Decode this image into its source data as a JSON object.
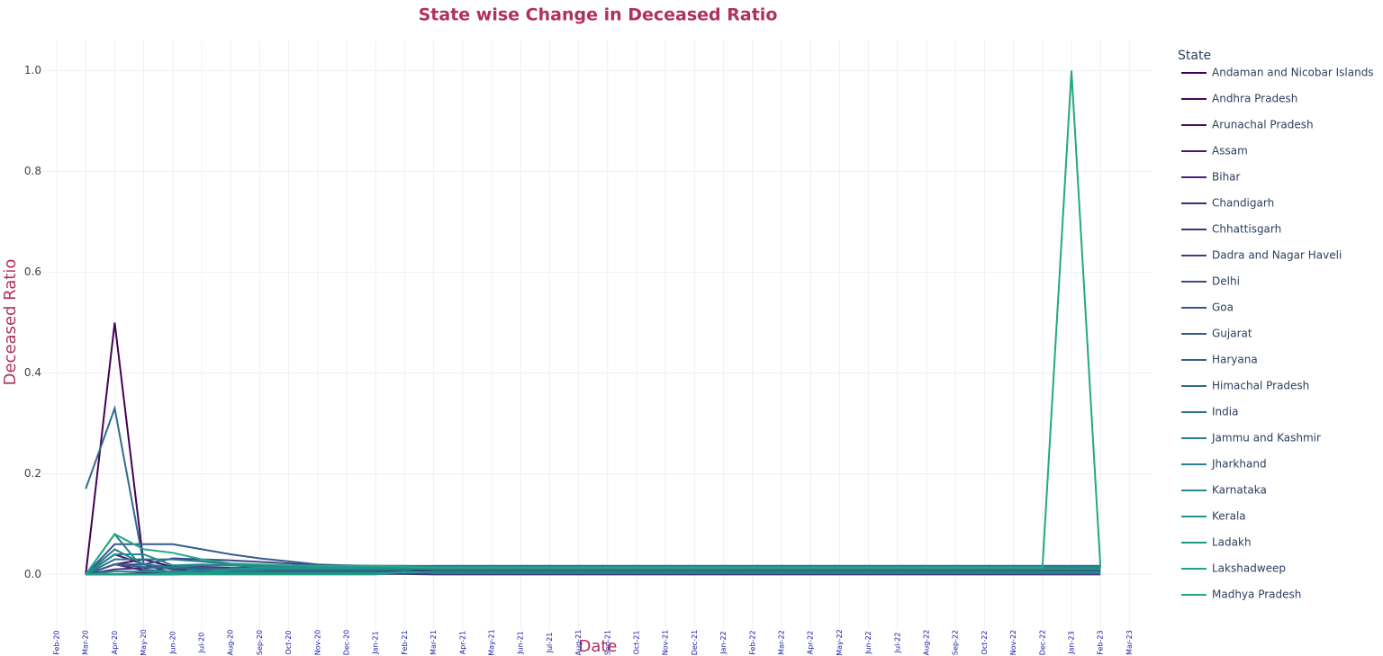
{
  "chart_data": {
    "type": "line",
    "title": "State wise Change in Deceased Ratio",
    "x_label": "Date",
    "y_label": "Deceased Ratio",
    "legend_title": "State",
    "x": [
      "Mar-20",
      "Apr-20",
      "May-20",
      "Jun-20",
      "Jul-20",
      "Aug-20",
      "Sep-20",
      "Oct-20",
      "Nov-20",
      "Dec-20",
      "Jan-21",
      "Feb-21",
      "Mar-21",
      "Apr-21",
      "May-21",
      "Jun-21",
      "Jul-21",
      "Aug-21",
      "Sep-21",
      "Oct-21",
      "Nov-21",
      "Dec-21",
      "Jan-22",
      "Feb-22",
      "Mar-22",
      "Apr-22",
      "May-22",
      "Jun-22",
      "Jul-22",
      "Aug-22",
      "Sep-22",
      "Oct-22",
      "Nov-22",
      "Dec-22",
      "Jan-23",
      "Feb-23"
    ],
    "xticks": [
      "Feb-20",
      "Mar-20",
      "Apr-20",
      "May-20",
      "Jun-20",
      "Jul-20",
      "Aug-20",
      "Sep-20",
      "Oct-20",
      "Nov-20",
      "Dec-20",
      "Jan-21",
      "Feb-21",
      "Mar-21",
      "Apr-21",
      "May-21",
      "Jun-21",
      "Jul-21",
      "Aug-21",
      "Sep-21",
      "Oct-21",
      "Nov-21",
      "Dec-21",
      "Jan-22",
      "Feb-22",
      "Mar-22",
      "Apr-22",
      "May-22",
      "Jun-22",
      "Jul-22",
      "Aug-22",
      "Sep-22",
      "Oct-22",
      "Nov-22",
      "Dec-22",
      "Jan-23",
      "Feb-23",
      "Mar-23"
    ],
    "ylim": [
      -0.11,
      1.06
    ],
    "yticks": [
      {
        "value": 0,
        "label": "0.0"
      },
      0.2,
      0.4,
      0.6,
      0.8,
      {
        "value": 1,
        "label": "1.0"
      }
    ],
    "grid": true,
    "series": [
      {
        "name": "Andaman and Nicobar Islands",
        "color": "#440154",
        "values": [
          0,
          0.5,
          0.02,
          0.01,
          0.01,
          0.012,
          0.014,
          0.014,
          0.014,
          0.013,
          0.013,
          0.013,
          0.013,
          0.013,
          0.013,
          0.013,
          0.013,
          0.013,
          0.013,
          0.013,
          0.013,
          0.013,
          0.013,
          0.013,
          0.013,
          0.013,
          0.013,
          0.013,
          0.013,
          0.013,
          0.013,
          0.013,
          0.013,
          0.013,
          0.013,
          0.013
        ]
      },
      {
        "name": "Andhra Pradesh",
        "color": "#46085c",
        "values": [
          0,
          0.02,
          0.03,
          0.015,
          0.012,
          0.009,
          0.008,
          0.008,
          0.008,
          0.008,
          0.008,
          0.008,
          0.007,
          0.007,
          0.007,
          0.007,
          0.007,
          0.007,
          0.007,
          0.007,
          0.007,
          0.007,
          0.007,
          0.007,
          0.007,
          0.007,
          0.007,
          0.007,
          0.007,
          0.007,
          0.007,
          0.007,
          0.007,
          0.007,
          0.007,
          0.007
        ]
      },
      {
        "name": "Arunachal Pradesh",
        "color": "#471063",
        "values": [
          0,
          0,
          0,
          0,
          0.003,
          0.002,
          0.002,
          0.003,
          0.003,
          0.003,
          0.003,
          0.003,
          0.004,
          0.004,
          0.004,
          0.004,
          0.004,
          0.004,
          0.004,
          0.004,
          0.004,
          0.004,
          0.004,
          0.004,
          0.004,
          0.004,
          0.004,
          0.004,
          0.004,
          0.004,
          0.004,
          0.004,
          0.004,
          0.004,
          0.004,
          0.004
        ]
      },
      {
        "name": "Assam",
        "color": "#48186a",
        "values": [
          0,
          0.04,
          0.02,
          0.003,
          0.002,
          0.003,
          0.004,
          0.004,
          0.004,
          0.004,
          0.005,
          0.005,
          0.005,
          0.005,
          0.005,
          0.005,
          0.005,
          0.005,
          0.005,
          0.005,
          0.005,
          0.005,
          0.005,
          0.005,
          0.005,
          0.005,
          0.005,
          0.005,
          0.005,
          0.005,
          0.005,
          0.005,
          0.005,
          0.005,
          0.005,
          0.005
        ]
      },
      {
        "name": "Bihar",
        "color": "#472172",
        "values": [
          0,
          0.02,
          0.008,
          0.006,
          0.006,
          0.005,
          0.005,
          0.005,
          0.005,
          0.006,
          0.006,
          0.006,
          0.013,
          0.013,
          0.013,
          0.013,
          0.013,
          0.013,
          0.013,
          0.013,
          0.013,
          0.013,
          0.013,
          0.013,
          0.013,
          0.013,
          0.013,
          0.013,
          0.013,
          0.013,
          0.013,
          0.013,
          0.013,
          0.013,
          0.013,
          0.013
        ]
      },
      {
        "name": "Chandigarh",
        "color": "#46297a",
        "values": [
          0,
          0.01,
          0.013,
          0.016,
          0.015,
          0.013,
          0.013,
          0.014,
          0.015,
          0.016,
          0.016,
          0.016,
          0.012,
          0.012,
          0.012,
          0.012,
          0.012,
          0.012,
          0.012,
          0.012,
          0.012,
          0.012,
          0.012,
          0.012,
          0.012,
          0.012,
          0.012,
          0.012,
          0.012,
          0.012,
          0.012,
          0.012,
          0.012,
          0.012,
          0.012,
          0.012
        ]
      },
      {
        "name": "Chhattisgarh",
        "color": "#453181",
        "values": [
          0,
          0,
          0.003,
          0.004,
          0.005,
          0.008,
          0.009,
          0.011,
          0.012,
          0.012,
          0.013,
          0.013,
          0.013,
          0.013,
          0.013,
          0.013,
          0.013,
          0.013,
          0.013,
          0.013,
          0.013,
          0.013,
          0.013,
          0.013,
          0.013,
          0.013,
          0.013,
          0.013,
          0.013,
          0.013,
          0.013,
          0.013,
          0.013,
          0.013,
          0.013,
          0.013
        ]
      },
      {
        "name": "Dadra and Nagar Haveli",
        "color": "#423a86",
        "values": [
          0,
          0,
          0,
          0,
          0.002,
          0.001,
          0.001,
          0.001,
          0.001,
          0.001,
          0.001,
          0.001,
          0,
          0,
          0,
          0,
          0,
          0,
          0,
          0,
          0,
          0,
          0,
          0,
          0,
          0,
          0,
          0,
          0,
          0,
          0,
          0,
          0,
          0,
          0,
          0
        ]
      },
      {
        "name": "Delhi",
        "color": "#3e4989",
        "values": [
          0,
          0.02,
          0.02,
          0.032,
          0.03,
          0.028,
          0.025,
          0.022,
          0.018,
          0.017,
          0.017,
          0.017,
          0.016,
          0.016,
          0.016,
          0.016,
          0.016,
          0.016,
          0.016,
          0.016,
          0.016,
          0.016,
          0.016,
          0.016,
          0.016,
          0.016,
          0.016,
          0.016,
          0.016,
          0.016,
          0.016,
          0.016,
          0.016,
          0.016,
          0.016,
          0.016
        ]
      },
      {
        "name": "Goa",
        "color": "#3b528b",
        "values": [
          0,
          0,
          0,
          0.002,
          0.006,
          0.012,
          0.013,
          0.014,
          0.014,
          0.014,
          0.014,
          0.014,
          0.017,
          0.017,
          0.017,
          0.017,
          0.017,
          0.017,
          0.017,
          0.017,
          0.017,
          0.017,
          0.017,
          0.017,
          0.017,
          0.017,
          0.017,
          0.017,
          0.017,
          0.017,
          0.017,
          0.017,
          0.017,
          0.017,
          0.017,
          0.017
        ]
      },
      {
        "name": "Gujarat",
        "color": "#375a8c",
        "values": [
          0,
          0.06,
          0.06,
          0.06,
          0.05,
          0.04,
          0.032,
          0.026,
          0.02,
          0.018,
          0.017,
          0.017,
          0.012,
          0.012,
          0.012,
          0.012,
          0.012,
          0.012,
          0.012,
          0.012,
          0.012,
          0.012,
          0.012,
          0.012,
          0.012,
          0.012,
          0.012,
          0.012,
          0.012,
          0.012,
          0.012,
          0.012,
          0.012,
          0.012,
          0.012,
          0.012
        ]
      },
      {
        "name": "Haryana",
        "color": "#33628d",
        "values": [
          0,
          0.02,
          0.015,
          0.012,
          0.013,
          0.011,
          0.011,
          0.011,
          0.011,
          0.011,
          0.011,
          0.011,
          0.011,
          0.011,
          0.011,
          0.011,
          0.011,
          0.011,
          0.011,
          0.011,
          0.011,
          0.011,
          0.011,
          0.011,
          0.011,
          0.011,
          0.011,
          0.011,
          0.011,
          0.011,
          0.011,
          0.011,
          0.011,
          0.011,
          0.011,
          0.011
        ]
      },
      {
        "name": "Himachal Pradesh",
        "color": "#2f6b8e",
        "values": [
          0.17,
          0.33,
          0.02,
          0.015,
          0.008,
          0.006,
          0.008,
          0.012,
          0.015,
          0.017,
          0.017,
          0.017,
          0.017,
          0.017,
          0.017,
          0.017,
          0.017,
          0.017,
          0.017,
          0.017,
          0.017,
          0.017,
          0.017,
          0.017,
          0.017,
          0.017,
          0.017,
          0.017,
          0.017,
          0.017,
          0.017,
          0.017,
          0.017,
          0.017,
          0.017,
          0.017
        ]
      },
      {
        "name": "India",
        "color": "#2c728e",
        "values": [
          0,
          0.03,
          0.03,
          0.03,
          0.026,
          0.02,
          0.017,
          0.015,
          0.015,
          0.014,
          0.014,
          0.014,
          0.012,
          0.012,
          0.012,
          0.012,
          0.012,
          0.012,
          0.012,
          0.012,
          0.012,
          0.012,
          0.012,
          0.012,
          0.012,
          0.012,
          0.012,
          0.012,
          0.012,
          0.012,
          0.012,
          0.012,
          0.012,
          0.012,
          0.012,
          0.012
        ]
      },
      {
        "name": "Jammu and Kashmir",
        "color": "#297b8e",
        "values": [
          0,
          0.05,
          0.02,
          0.014,
          0.018,
          0.018,
          0.016,
          0.016,
          0.016,
          0.015,
          0.015,
          0.015,
          0.014,
          0.014,
          0.014,
          0.014,
          0.014,
          0.014,
          0.014,
          0.014,
          0.014,
          0.014,
          0.014,
          0.014,
          0.014,
          0.014,
          0.014,
          0.014,
          0.014,
          0.014,
          0.014,
          0.014,
          0.014,
          0.014,
          0.014,
          0.014
        ]
      },
      {
        "name": "Jharkhand",
        "color": "#26828e",
        "values": [
          0,
          0.08,
          0.01,
          0.006,
          0.009,
          0.01,
          0.009,
          0.009,
          0.009,
          0.009,
          0.009,
          0.009,
          0.015,
          0.015,
          0.015,
          0.015,
          0.015,
          0.015,
          0.015,
          0.015,
          0.015,
          0.015,
          0.015,
          0.015,
          0.015,
          0.015,
          0.015,
          0.015,
          0.015,
          0.015,
          0.015,
          0.015,
          0.015,
          0.015,
          0.015,
          0.015
        ]
      },
      {
        "name": "Karnataka",
        "color": "#238a8d",
        "values": [
          0,
          0.04,
          0.04,
          0.018,
          0.02,
          0.018,
          0.015,
          0.014,
          0.013,
          0.013,
          0.013,
          0.013,
          0.013,
          0.013,
          0.013,
          0.013,
          0.013,
          0.013,
          0.013,
          0.013,
          0.013,
          0.013,
          0.013,
          0.013,
          0.013,
          0.013,
          0.013,
          0.013,
          0.013,
          0.013,
          0.013,
          0.013,
          0.013,
          0.013,
          0.013,
          0.013
        ]
      },
      {
        "name": "Kerala",
        "color": "#21918c",
        "values": [
          0,
          0.006,
          0.006,
          0.005,
          0.004,
          0.004,
          0.004,
          0.004,
          0.004,
          0.004,
          0.004,
          0.004,
          0.005,
          0.005,
          0.005,
          0.005,
          0.005,
          0.005,
          0.005,
          0.005,
          0.005,
          0.005,
          0.005,
          0.005,
          0.005,
          0.005,
          0.005,
          0.005,
          0.005,
          0.005,
          0.005,
          0.005,
          0.005,
          0.005,
          0.005,
          0.005
        ]
      },
      {
        "name": "Ladakh",
        "color": "#1f988b",
        "values": [
          0,
          0,
          0,
          0.002,
          0.002,
          0.01,
          0.013,
          0.013,
          0.013,
          0.013,
          0.013,
          0.013,
          0.01,
          0.01,
          0.01,
          0.01,
          0.01,
          0.01,
          0.01,
          0.01,
          0.01,
          0.01,
          0.01,
          0.01,
          0.01,
          0.01,
          0.01,
          0.01,
          0.01,
          0.01,
          0.01,
          0.01,
          0.01,
          0.01,
          0.01,
          0.01
        ]
      },
      {
        "name": "Lakshadweep",
        "color": "#20a386",
        "values": [
          0,
          0,
          0,
          0,
          0,
          0,
          0,
          0,
          0,
          0,
          0,
          0.005,
          0.005,
          0.005,
          0.005,
          0.005,
          0.005,
          0.005,
          0.005,
          0.005,
          0.005,
          0.005,
          0.005,
          0.005,
          0.005,
          0.005,
          0.005,
          0.005,
          0.005,
          0.005,
          0.005,
          0.005,
          0.005,
          0.005,
          0.005,
          0.005
        ]
      },
      {
        "name": "Madhya Pradesh",
        "color": "#22a884",
        "values": [
          0,
          0.08,
          0.05,
          0.043,
          0.03,
          0.022,
          0.02,
          0.018,
          0.017,
          0.017,
          0.017,
          0.016,
          0.014,
          0.014,
          0.014,
          0.014,
          0.014,
          0.014,
          0.014,
          0.014,
          0.014,
          0.014,
          0.014,
          0.014,
          0.014,
          0.014,
          0.014,
          0.014,
          0.014,
          0.014,
          0.014,
          0.014,
          0.014,
          0.014,
          1,
          0.014
        ]
      }
    ]
  }
}
